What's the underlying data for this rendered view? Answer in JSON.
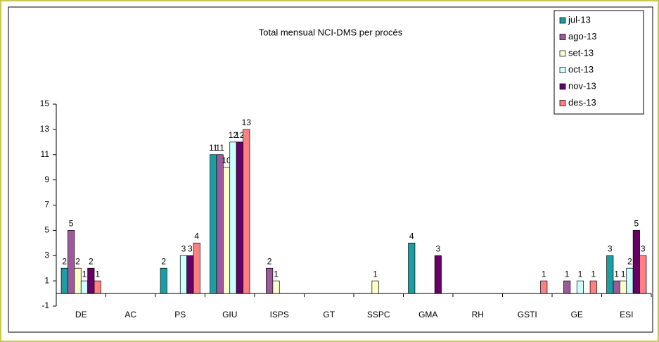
{
  "chart_data": {
    "type": "bar",
    "title": "Total mensual NCI-DMS per procés",
    "categories": [
      "DE",
      "AC",
      "PS",
      "GIU",
      "ISPS",
      "GT",
      "SSPC",
      "GMA",
      "RH",
      "GSTI",
      "GE",
      "ESI"
    ],
    "series": [
      {
        "name": "jul-13",
        "color": "#1a9ea3",
        "values": [
          2,
          null,
          2,
          11,
          null,
          null,
          null,
          4,
          null,
          null,
          null,
          3
        ]
      },
      {
        "name": "ago-13",
        "color": "#9b5b9a",
        "values": [
          5,
          null,
          null,
          11,
          2,
          null,
          null,
          null,
          null,
          null,
          1,
          1
        ]
      },
      {
        "name": "set-13",
        "color": "#ffffcc",
        "values": [
          2,
          null,
          null,
          10,
          1,
          null,
          1,
          null,
          null,
          null,
          null,
          1
        ]
      },
      {
        "name": "oct-13",
        "color": "#ccffff",
        "values": [
          1,
          null,
          3,
          12,
          null,
          null,
          null,
          null,
          null,
          null,
          1,
          2
        ]
      },
      {
        "name": "nov-13",
        "color": "#660066",
        "values": [
          2,
          null,
          3,
          12,
          null,
          null,
          null,
          3,
          null,
          null,
          null,
          5
        ]
      },
      {
        "name": "des-13",
        "color": "#ff8080",
        "values": [
          1,
          null,
          4,
          13,
          null,
          null,
          null,
          null,
          null,
          1,
          1,
          3
        ]
      }
    ],
    "ylim": [
      -1,
      15
    ],
    "yticks": [
      -1,
      1,
      3,
      5,
      7,
      9,
      11,
      13,
      15
    ],
    "grid": false,
    "legend": "top-right"
  }
}
